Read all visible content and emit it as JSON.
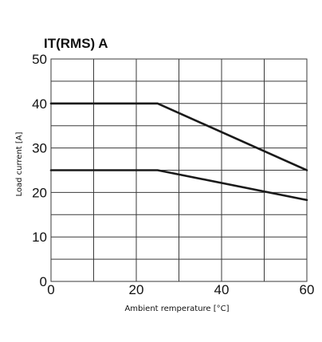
{
  "chart_data": {
    "type": "line",
    "title": "IT(RMS) A",
    "xlabel": "Ambient remperature [°C]",
    "ylabel": "Load current [A]",
    "xlim": [
      0,
      60
    ],
    "ylim": [
      0,
      50
    ],
    "x_ticks": [
      "0",
      "20",
      "40",
      "60"
    ],
    "y_ticks": [
      "0",
      "10",
      "20",
      "30",
      "40",
      "50"
    ],
    "grid": true,
    "series": [
      {
        "x": [
          0,
          25,
          60
        ],
        "y": [
          40,
          40,
          25
        ]
      },
      {
        "x": [
          0,
          25,
          60
        ],
        "y": [
          25,
          25,
          18.3
        ]
      }
    ],
    "line_color": "#1a1a1a",
    "grid_color": "#3a3a3a"
  }
}
